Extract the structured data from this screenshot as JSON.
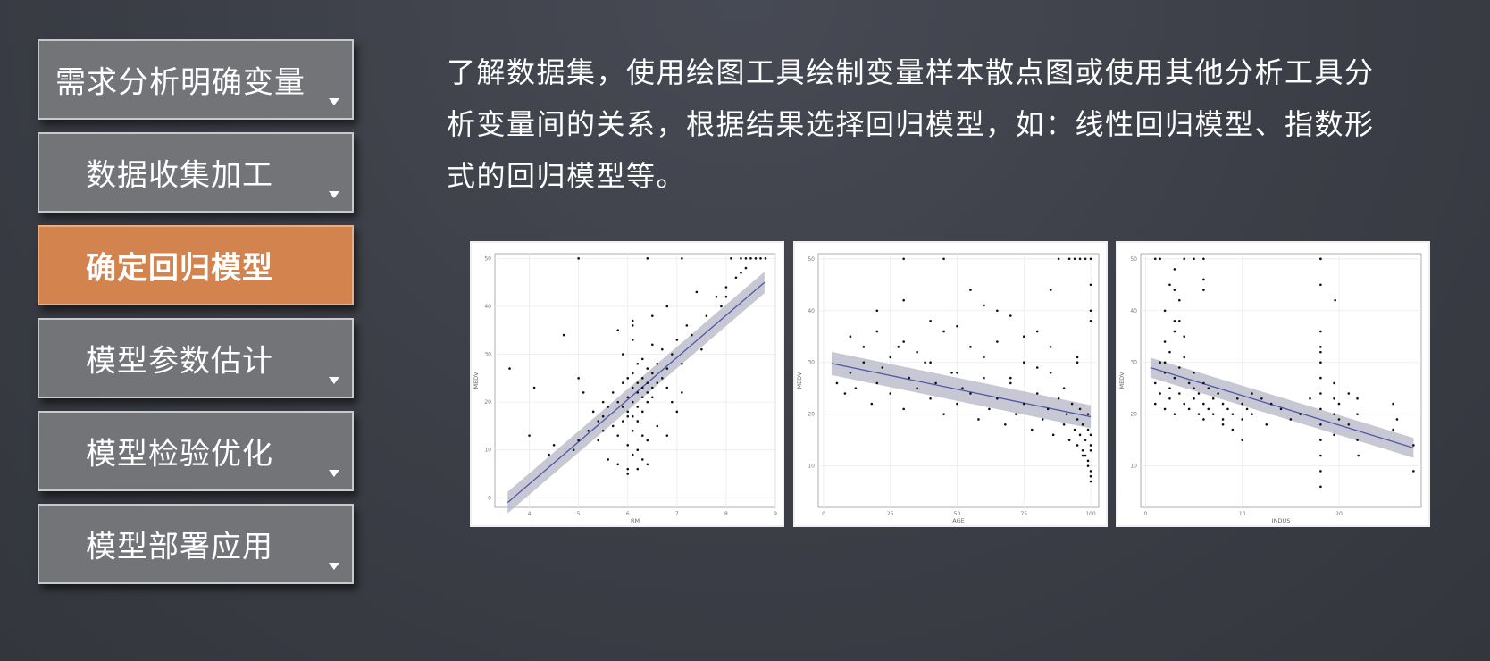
{
  "steps": [
    {
      "label": "需求分析明确变量",
      "active": false
    },
    {
      "label": "数据收集加工",
      "active": false
    },
    {
      "label": "确定回归模型",
      "active": true
    },
    {
      "label": "模型参数估计",
      "active": false
    },
    {
      "label": "模型检验优化",
      "active": false
    },
    {
      "label": "模型部署应用",
      "active": false
    }
  ],
  "description": {
    "line1": "了解数据集，使用绘图工具绘制变量样本散点图或使用其他分析工具分",
    "line2": "析变量间的关系，根据结果选择回归模型，如：线性回归模型、指数形",
    "line3": "式的回归模型等。"
  },
  "colors": {
    "accent": "#d2834e",
    "step_bg": "#737478",
    "fit_line": "#5058a8",
    "band": "#b4b6c4"
  },
  "icons": {
    "step_caret": "caret-down-icon"
  },
  "chart_data": [
    {
      "type": "scatter",
      "xlabel": "RM",
      "ylabel": "MEDV",
      "xlim": [
        3.3,
        9
      ],
      "ylim": [
        -2,
        51
      ],
      "xticks": [
        4,
        5,
        6,
        7,
        8,
        9
      ],
      "yticks": [
        0,
        10,
        20,
        30,
        40,
        50
      ],
      "grid": true,
      "fit": {
        "x": [
          3.56,
          8.78
        ],
        "y": [
          -1,
          45
        ],
        "band": 1.4
      },
      "points": {
        "x": [
          5.2,
          5.4,
          5.5,
          5.6,
          5.7,
          5.7,
          5.8,
          5.8,
          5.9,
          5.9,
          5.9,
          6.0,
          6.0,
          6.0,
          6.0,
          6.1,
          6.1,
          6.1,
          6.1,
          6.1,
          6.2,
          6.2,
          6.2,
          6.2,
          6.2,
          6.3,
          6.3,
          6.3,
          6.3,
          6.4,
          6.4,
          6.4,
          6.4,
          6.5,
          6.5,
          6.5,
          6.6,
          6.6,
          6.7,
          6.7,
          6.8,
          6.8,
          6.9,
          7.0,
          7.1,
          7.2,
          7.3,
          7.5,
          7.6,
          7.8,
          7.9,
          8.0,
          8.2,
          8.3,
          8.4,
          8.6,
          5.6,
          5.8,
          6.0,
          6.1,
          6.2,
          6.3,
          6.4,
          6.6,
          6.8,
          7.0,
          5.9,
          6.1,
          6.3,
          6.5,
          6.0,
          6.2,
          6.4,
          5.8,
          6.1,
          3.6,
          4.0,
          4.1,
          4.4,
          4.5,
          4.9,
          5.0,
          5.1,
          5.3,
          5.4,
          5.5,
          6.4,
          7.1,
          8.1,
          8.3,
          8.7,
          8.8,
          8.4,
          8.5,
          5.0,
          6.1,
          6.5,
          6.8,
          7.4,
          8.0,
          4.7,
          5.0,
          5.5,
          6.0,
          6.2,
          6.3,
          6.9,
          7.1
        ],
        "y": [
          14,
          12,
          17,
          19,
          15,
          22,
          20,
          13,
          19,
          24,
          16,
          18,
          21,
          25,
          11,
          20,
          23,
          17,
          26,
          14,
          19,
          22,
          24,
          28,
          16,
          21,
          23,
          25,
          18,
          22,
          24,
          27,
          20,
          23,
          26,
          21,
          24,
          28,
          25,
          31,
          27,
          23,
          30,
          33,
          28,
          36,
          34,
          31,
          38,
          42,
          40,
          44,
          46,
          47,
          48,
          50,
          8,
          7,
          6,
          9,
          10,
          8,
          12,
          15,
          13,
          18,
          30,
          33,
          29,
          32,
          5,
          6,
          7,
          35,
          36,
          27,
          13,
          23,
          9,
          11,
          10,
          12,
          22,
          18,
          16,
          14,
          50,
          50,
          50,
          50,
          50,
          50,
          50,
          50,
          50,
          37,
          38,
          40,
          43,
          42,
          34,
          25,
          20,
          17,
          16,
          13,
          20,
          22
        ]
      }
    },
    {
      "type": "scatter",
      "xlabel": "AGE",
      "ylabel": "MEDV",
      "xlim": [
        -2,
        103
      ],
      "ylim": [
        2,
        51
      ],
      "xticks": [
        0,
        25,
        50,
        75,
        100
      ],
      "yticks": [
        10,
        20,
        30,
        40,
        50
      ],
      "grid": true,
      "fit": {
        "x": [
          3,
          100
        ],
        "y": [
          29.8,
          19.5
        ],
        "band": 1.4
      },
      "points": {
        "x": [
          5,
          8,
          10,
          12,
          15,
          18,
          20,
          22,
          25,
          28,
          30,
          32,
          35,
          38,
          40,
          42,
          45,
          48,
          50,
          52,
          55,
          58,
          60,
          62,
          65,
          68,
          70,
          72,
          75,
          78,
          80,
          82,
          84,
          86,
          88,
          90,
          91,
          92,
          93,
          94,
          95,
          95,
          96,
          96,
          97,
          97,
          98,
          98,
          99,
          99,
          99,
          100,
          100,
          100,
          100,
          100,
          10,
          15,
          20,
          25,
          30,
          35,
          40,
          45,
          50,
          55,
          60,
          65,
          70,
          75,
          80,
          85,
          90,
          95,
          20,
          30,
          40,
          50,
          60,
          70,
          80,
          85,
          88,
          92,
          94,
          96,
          98,
          100,
          100,
          100,
          100,
          30,
          45,
          55,
          65,
          75,
          85,
          95,
          97,
          99,
          100
        ],
        "y": [
          26,
          24,
          28,
          25,
          30,
          22,
          26,
          29,
          24,
          33,
          21,
          27,
          25,
          30,
          23,
          26,
          20,
          28,
          22,
          25,
          24,
          19,
          27,
          21,
          23,
          18,
          26,
          20,
          22,
          17,
          24,
          19,
          21,
          16,
          23,
          18,
          20,
          15,
          22,
          17,
          19,
          14,
          21,
          16,
          13,
          18,
          15,
          12,
          20,
          11,
          17,
          14,
          9,
          16,
          8,
          13,
          35,
          33,
          36,
          31,
          34,
          32,
          30,
          36,
          28,
          33,
          31,
          34,
          27,
          30,
          29,
          28,
          25,
          31,
          40,
          42,
          38,
          37,
          41,
          39,
          36,
          44,
          50,
          50,
          50,
          50,
          50,
          50,
          45,
          40,
          38,
          50,
          50,
          44,
          40,
          35,
          33,
          30,
          12,
          10,
          7
        ]
      }
    },
    {
      "type": "scatter",
      "xlabel": "INDUS",
      "ylabel": "MEDV",
      "xlim": [
        -0.5,
        28.5
      ],
      "ylim": [
        2,
        51
      ],
      "xticks": [
        0,
        10,
        20
      ],
      "yticks": [
        10,
        20,
        30,
        40,
        50
      ],
      "grid": true,
      "fit": {
        "x": [
          0.5,
          27.7
        ],
        "y": [
          29,
          13.5
        ],
        "band": 1.2
      },
      "points": {
        "x": [
          1,
          1,
          1.5,
          1.5,
          2,
          2,
          2,
          2.5,
          2.5,
          2.5,
          3,
          3,
          3,
          3.5,
          3.5,
          4,
          4,
          4.5,
          4.5,
          5,
          5,
          5,
          5.5,
          5.5,
          6,
          6,
          6,
          6.5,
          6.5,
          7,
          7,
          7.5,
          8,
          8,
          8,
          8.5,
          9,
          9,
          9.5,
          10,
          10,
          10,
          10.5,
          11,
          11,
          12,
          12.5,
          13,
          14,
          15,
          16,
          17,
          18.1,
          18.1,
          18.1,
          18.1,
          18.1,
          18.1,
          18.1,
          18.1,
          18.1,
          18.1,
          18.1,
          18.1,
          19.5,
          19.5,
          19.5,
          19.5,
          20,
          20,
          21,
          21,
          21.9,
          21.9,
          21.9,
          22,
          25.6,
          25.6,
          26,
          27.7,
          27.7,
          2,
          2.5,
          3,
          3,
          3.5,
          4,
          5,
          6,
          6,
          6,
          18.1,
          18.1,
          18.1,
          19.6,
          1,
          1.5,
          2,
          3,
          3.5,
          4
        ],
        "y": [
          26,
          22,
          24,
          30,
          28,
          21,
          34,
          25,
          23,
          32,
          27,
          20,
          36,
          24,
          29,
          22,
          31,
          26,
          21,
          25,
          23,
          28,
          24,
          20,
          26,
          22,
          19,
          25,
          21,
          23,
          20,
          24,
          22,
          19,
          18,
          21,
          20,
          17,
          23,
          22,
          19,
          15,
          21,
          20,
          24,
          23,
          18,
          22,
          21,
          19,
          20,
          23,
          6,
          9,
          12,
          15,
          18,
          21,
          24,
          27,
          30,
          33,
          36,
          45,
          20,
          23,
          16,
          26,
          19,
          22,
          18,
          24,
          15,
          20,
          23,
          12,
          17,
          22,
          19,
          14,
          9,
          40,
          45,
          38,
          48,
          42,
          35,
          50,
          50,
          46,
          44,
          50,
          50,
          32,
          42,
          50,
          50,
          30,
          44,
          38,
          50
        ]
      }
    }
  ]
}
